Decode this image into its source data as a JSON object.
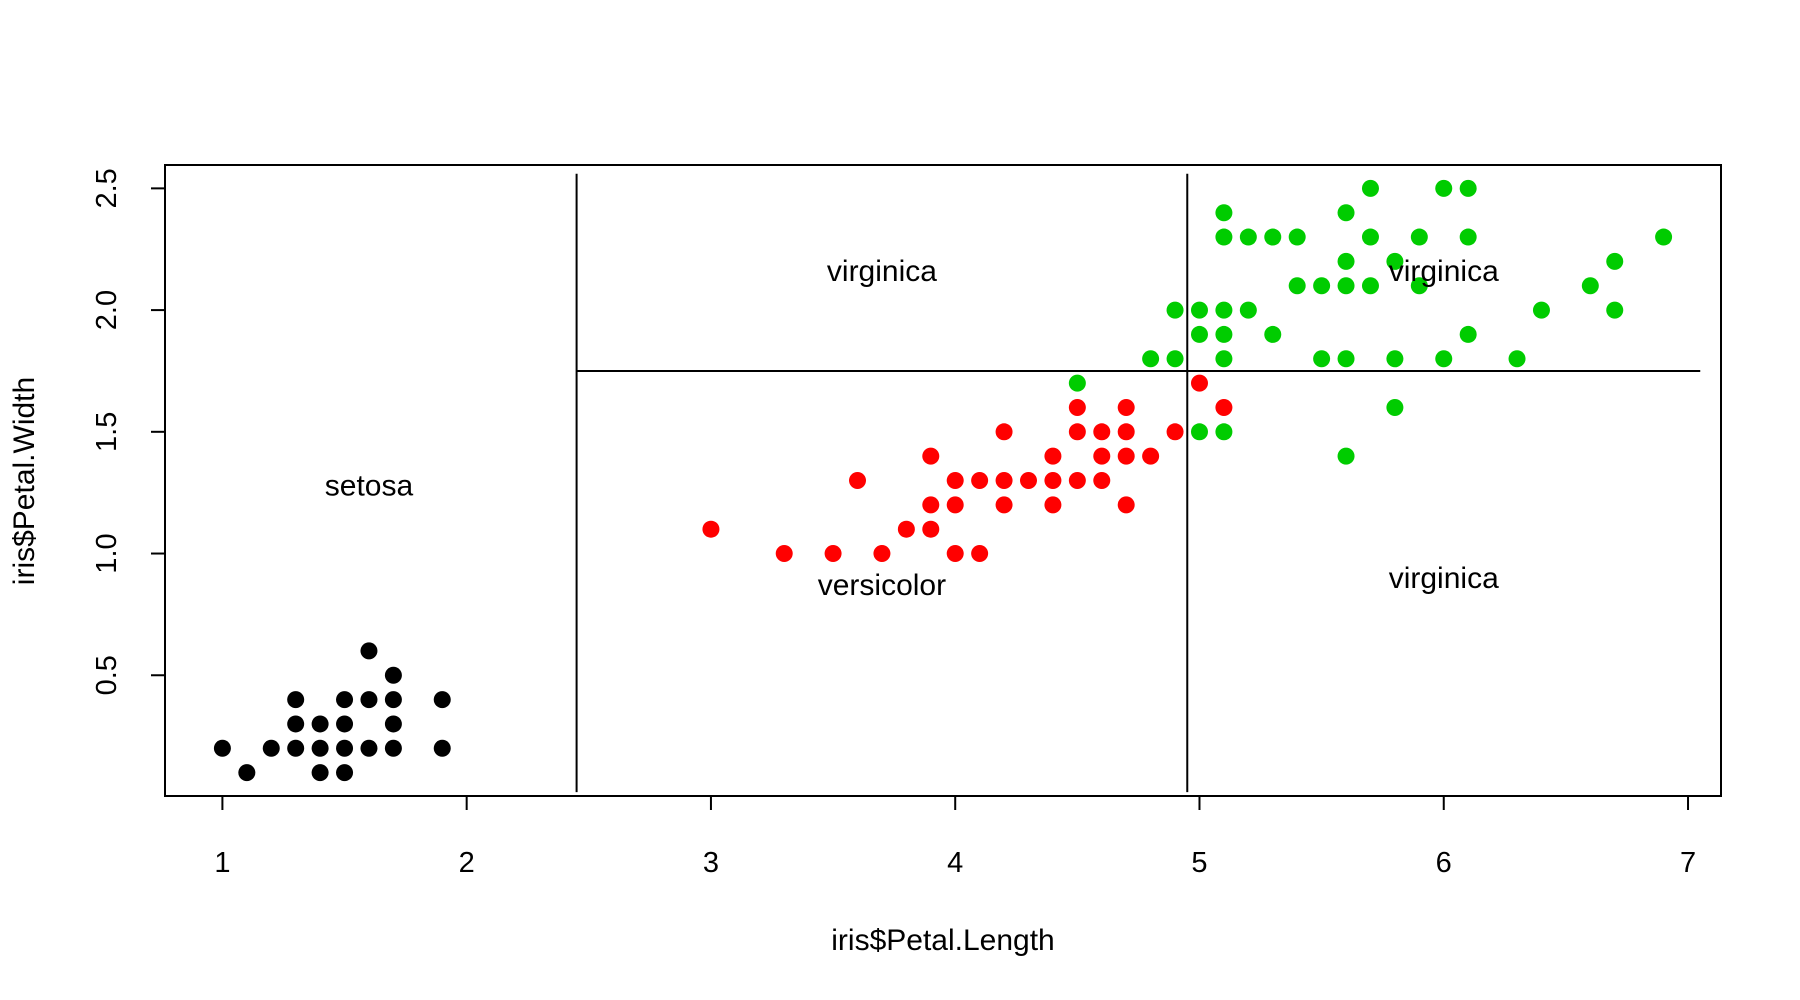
{
  "chart_data": {
    "type": "scatter",
    "xlabel": "iris$Petal.Length",
    "ylabel": "iris$Petal.Width",
    "xlim": [
      0.765,
      7.135
    ],
    "ylim": [
      0.004,
      2.596
    ],
    "xticks": [
      1,
      2,
      3,
      4,
      5,
      6,
      7
    ],
    "yticks": [
      0.5,
      1.0,
      1.5,
      2.0,
      2.5
    ],
    "ytick_labels": [
      "0.5",
      "1.0",
      "1.5",
      "2.0",
      "2.5"
    ],
    "grid": false,
    "series": [
      {
        "color": "#000000",
        "points": [
          [
            1.0,
            0.2
          ],
          [
            1.1,
            0.1
          ],
          [
            1.2,
            0.2
          ],
          [
            1.3,
            0.2
          ],
          [
            1.3,
            0.3
          ],
          [
            1.3,
            0.4
          ],
          [
            1.4,
            0.1
          ],
          [
            1.4,
            0.2
          ],
          [
            1.4,
            0.3
          ],
          [
            1.5,
            0.1
          ],
          [
            1.5,
            0.2
          ],
          [
            1.5,
            0.3
          ],
          [
            1.5,
            0.4
          ],
          [
            1.6,
            0.2
          ],
          [
            1.6,
            0.4
          ],
          [
            1.6,
            0.6
          ],
          [
            1.7,
            0.2
          ],
          [
            1.7,
            0.3
          ],
          [
            1.7,
            0.4
          ],
          [
            1.7,
            0.5
          ],
          [
            1.9,
            0.2
          ],
          [
            1.9,
            0.4
          ]
        ]
      },
      {
        "color": "#ff0000",
        "points": [
          [
            3.0,
            1.1
          ],
          [
            3.3,
            1.0
          ],
          [
            3.5,
            1.0
          ],
          [
            3.6,
            1.3
          ],
          [
            3.7,
            1.0
          ],
          [
            3.8,
            1.1
          ],
          [
            3.9,
            1.1
          ],
          [
            3.9,
            1.2
          ],
          [
            3.9,
            1.4
          ],
          [
            4.0,
            1.0
          ],
          [
            4.0,
            1.2
          ],
          [
            4.0,
            1.3
          ],
          [
            4.1,
            1.0
          ],
          [
            4.1,
            1.3
          ],
          [
            4.2,
            1.2
          ],
          [
            4.2,
            1.3
          ],
          [
            4.2,
            1.5
          ],
          [
            4.3,
            1.3
          ],
          [
            4.4,
            1.2
          ],
          [
            4.4,
            1.3
          ],
          [
            4.4,
            1.4
          ],
          [
            4.5,
            1.3
          ],
          [
            4.5,
            1.5
          ],
          [
            4.5,
            1.6
          ],
          [
            4.6,
            1.3
          ],
          [
            4.6,
            1.4
          ],
          [
            4.6,
            1.5
          ],
          [
            4.7,
            1.2
          ],
          [
            4.7,
            1.4
          ],
          [
            4.7,
            1.5
          ],
          [
            4.7,
            1.6
          ],
          [
            4.8,
            1.4
          ],
          [
            4.9,
            1.5
          ],
          [
            5.0,
            1.7
          ],
          [
            5.1,
            1.6
          ]
        ]
      },
      {
        "color": "#00cc00",
        "points": [
          [
            4.5,
            1.7
          ],
          [
            4.8,
            1.8
          ],
          [
            4.9,
            1.8
          ],
          [
            4.9,
            2.0
          ],
          [
            5.0,
            1.5
          ],
          [
            5.0,
            1.9
          ],
          [
            5.0,
            2.0
          ],
          [
            5.1,
            1.5
          ],
          [
            5.1,
            1.8
          ],
          [
            5.1,
            1.9
          ],
          [
            5.1,
            2.0
          ],
          [
            5.1,
            2.3
          ],
          [
            5.1,
            2.4
          ],
          [
            5.2,
            2.0
          ],
          [
            5.2,
            2.3
          ],
          [
            5.3,
            1.9
          ],
          [
            5.3,
            2.3
          ],
          [
            5.4,
            2.1
          ],
          [
            5.4,
            2.3
          ],
          [
            5.5,
            1.8
          ],
          [
            5.5,
            2.1
          ],
          [
            5.6,
            1.4
          ],
          [
            5.6,
            1.8
          ],
          [
            5.6,
            2.1
          ],
          [
            5.6,
            2.2
          ],
          [
            5.6,
            2.4
          ],
          [
            5.7,
            2.1
          ],
          [
            5.7,
            2.3
          ],
          [
            5.7,
            2.5
          ],
          [
            5.8,
            1.6
          ],
          [
            5.8,
            1.8
          ],
          [
            5.8,
            2.2
          ],
          [
            5.9,
            2.1
          ],
          [
            5.9,
            2.3
          ],
          [
            6.0,
            1.8
          ],
          [
            6.0,
            2.5
          ],
          [
            6.1,
            1.9
          ],
          [
            6.1,
            2.3
          ],
          [
            6.1,
            2.5
          ],
          [
            6.3,
            1.8
          ],
          [
            6.4,
            2.0
          ],
          [
            6.6,
            2.1
          ],
          [
            6.7,
            2.0
          ],
          [
            6.7,
            2.2
          ],
          [
            6.9,
            2.3
          ]
        ]
      }
    ],
    "split_lines": [
      {
        "orientation": "vertical",
        "x": 2.45,
        "y_from": 0.02,
        "y_to": 2.56
      },
      {
        "orientation": "vertical",
        "x": 4.95,
        "y_from": 0.02,
        "y_to": 2.56
      },
      {
        "orientation": "horizontal",
        "y": 1.75,
        "x_from": 2.45,
        "x_to": 7.05
      }
    ],
    "region_labels": [
      {
        "text": "setosa",
        "x": 1.6,
        "y": 1.28
      },
      {
        "text": "virginica",
        "x": 3.7,
        "y": 2.16
      },
      {
        "text": "versicolor",
        "x": 3.7,
        "y": 0.87
      },
      {
        "text": "virginica",
        "x": 6.0,
        "y": 2.16
      },
      {
        "text": "virginica",
        "x": 6.0,
        "y": 0.9
      }
    ]
  }
}
